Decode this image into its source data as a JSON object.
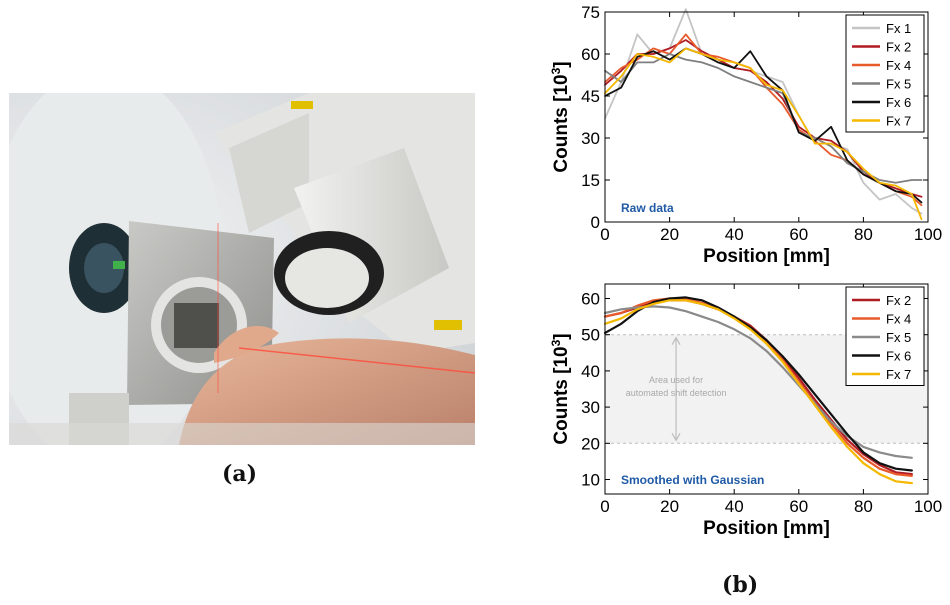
{
  "figure": {
    "caption_a": "(a)",
    "caption_b": "(b)",
    "photo": {
      "icon": "medical-photo",
      "description_hidden": ""
    }
  },
  "chart_data": [
    {
      "type": "line",
      "annotation": "Raw data",
      "xlabel": "Position [mm]",
      "ylabel": "Counts [10^3]",
      "ylabel_parts": {
        "base": "Counts [10",
        "sup": "3",
        "close": "]"
      },
      "xlim": [
        0,
        100
      ],
      "ylim": [
        0,
        75
      ],
      "xticks": [
        "0",
        "20",
        "40",
        "60",
        "80",
        "100"
      ],
      "yticks": [
        "0",
        "15",
        "30",
        "45",
        "60",
        "75"
      ],
      "grid": false,
      "legend_position": "top-right",
      "x": [
        0,
        5,
        10,
        15,
        20,
        25,
        30,
        35,
        40,
        45,
        50,
        55,
        60,
        65,
        70,
        75,
        80,
        85,
        90,
        95,
        98
      ],
      "series": [
        {
          "name": "Fx 1",
          "color": "#c4c4c4",
          "values": [
            37,
            50,
            67,
            60,
            62,
            76,
            60,
            58,
            55,
            54,
            52,
            50,
            38,
            28,
            28,
            26,
            14,
            8,
            10,
            5,
            3
          ]
        },
        {
          "name": "Fx 2",
          "color": "#b01c24",
          "values": [
            49,
            54,
            60,
            60,
            62,
            65,
            61,
            58,
            55,
            54,
            50,
            44,
            34,
            30,
            29,
            25,
            18,
            14,
            12,
            10,
            9
          ]
        },
        {
          "name": "Fx 4",
          "color": "#e85a2c",
          "values": [
            50,
            55,
            58,
            62,
            60,
            67,
            60,
            59,
            57,
            55,
            48,
            42,
            33,
            29,
            24,
            22,
            17,
            14,
            11,
            9,
            6
          ]
        },
        {
          "name": "Fx 5",
          "color": "#7f7f7f",
          "values": [
            54,
            50,
            57,
            57,
            60,
            58,
            57,
            55,
            52,
            50,
            48,
            46,
            32,
            30,
            27,
            21,
            18,
            15,
            14,
            15,
            15
          ]
        },
        {
          "name": "Fx 6",
          "color": "#111111",
          "values": [
            45,
            48,
            59,
            61,
            58,
            62,
            60,
            57,
            55,
            61,
            52,
            47,
            32,
            29,
            34,
            22,
            17,
            14,
            11,
            10,
            7
          ]
        },
        {
          "name": "Fx 7",
          "color": "#f5b800",
          "values": [
            46,
            52,
            60,
            59,
            57,
            62,
            60,
            58,
            57,
            55,
            49,
            47,
            38,
            28,
            28,
            25,
            19,
            14,
            13,
            10,
            1
          ]
        }
      ]
    },
    {
      "type": "line",
      "annotation": "Smoothed with Gaussian",
      "shaded_region_label": "Area used for automated shift detection",
      "shaded_region_lines": [
        "Area used for",
        "automated shift detection"
      ],
      "shaded_region_y": [
        20,
        50
      ],
      "xlabel": "Position [mm]",
      "ylabel": "Counts [10^3]",
      "ylabel_parts": {
        "base": "Counts [10",
        "sup": "3",
        "close": "]"
      },
      "xlim": [
        0,
        100
      ],
      "ylim": [
        6,
        64
      ],
      "xticks": [
        "0",
        "20",
        "40",
        "60",
        "80",
        "100"
      ],
      "yticks": [
        "10",
        "20",
        "30",
        "40",
        "50",
        "60"
      ],
      "grid": false,
      "legend_position": "top-right",
      "x": [
        0,
        5,
        10,
        15,
        20,
        25,
        30,
        35,
        40,
        45,
        50,
        55,
        60,
        65,
        70,
        75,
        80,
        85,
        90,
        95
      ],
      "series": [
        {
          "name": "Fx 2",
          "color": "#b01c24",
          "values": [
            55,
            56,
            57.5,
            59,
            59.5,
            59.5,
            58.5,
            57,
            55,
            52.5,
            48.5,
            43.5,
            38,
            32,
            26.5,
            21,
            17,
            14,
            12,
            11.5
          ]
        },
        {
          "name": "Fx 4",
          "color": "#e85a2c",
          "values": [
            55,
            56,
            58,
            59.5,
            60,
            59.8,
            58.8,
            57,
            55,
            52,
            48,
            43,
            37,
            31,
            25.5,
            20,
            16,
            13,
            11.5,
            11
          ]
        },
        {
          "name": "Fx 5",
          "color": "#8a8a8a",
          "values": [
            56,
            57,
            57.5,
            57.8,
            57.5,
            56.5,
            55,
            53.5,
            51.5,
            49,
            45.5,
            41,
            36,
            31,
            26,
            22,
            19,
            17.5,
            16.5,
            16
          ]
        },
        {
          "name": "Fx 6",
          "color": "#111111",
          "values": [
            50.5,
            53,
            56.5,
            59,
            60,
            60.3,
            59.5,
            57.5,
            55,
            52,
            48.5,
            44,
            39,
            33.5,
            28,
            22.5,
            17.5,
            14.5,
            13,
            12.5
          ]
        },
        {
          "name": "Fx 7",
          "color": "#f5b800",
          "values": [
            53,
            54.5,
            57,
            58.5,
            59.5,
            59.5,
            58.5,
            57,
            54.5,
            51.5,
            47.5,
            42.5,
            36.5,
            30.5,
            24.5,
            19,
            14.5,
            11.5,
            9.5,
            9
          ]
        }
      ]
    }
  ]
}
